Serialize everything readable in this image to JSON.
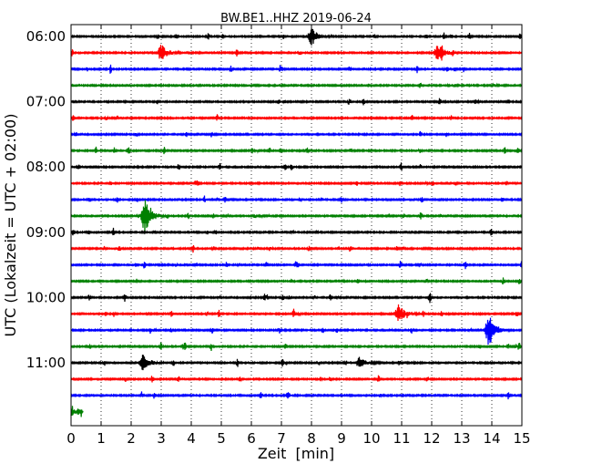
{
  "chart_data": {
    "type": "line",
    "title": "BW.BE1..HHZ 2019-06-24",
    "xlabel": "Zeit  [min]",
    "ylabel": "UTC (Lokalzeit = UTC + 02:00)",
    "xlim": [
      0,
      15
    ],
    "x_ticks": [
      0,
      1,
      2,
      3,
      4,
      5,
      6,
      7,
      8,
      9,
      10,
      11,
      12,
      13,
      14,
      15
    ],
    "y_tick_labels": [
      "06:00",
      "07:00",
      "08:00",
      "09:00",
      "10:00",
      "11:00"
    ],
    "grid": "x",
    "trace_start_times": [
      "06:00",
      "06:15",
      "06:30",
      "06:45",
      "07:00",
      "07:15",
      "07:30",
      "07:45",
      "08:00",
      "08:15",
      "08:30",
      "08:45",
      "09:00",
      "09:15",
      "09:30",
      "09:45",
      "10:00",
      "10:15",
      "10:30",
      "10:45",
      "11:00",
      "11:15",
      "11:30",
      "11:45"
    ],
    "trace_colors": [
      "#000000",
      "#ff0000",
      "#0000ff",
      "#008000"
    ],
    "events": [
      {
        "trace": "06:00",
        "minute": 8.0,
        "amplitude": 1.0
      },
      {
        "trace": "06:15",
        "minute": 3.0,
        "amplitude": 1.0
      },
      {
        "trace": "06:15",
        "minute": 12.2,
        "amplitude": 1.0
      },
      {
        "trace": "08:45",
        "minute": 2.45,
        "amplitude": 2.0
      },
      {
        "trace": "10:15",
        "minute": 10.9,
        "amplitude": 1.0
      },
      {
        "trace": "10:30",
        "minute": 13.9,
        "amplitude": 2.0
      },
      {
        "trace": "11:00",
        "minute": 2.4,
        "amplitude": 1.0
      },
      {
        "trace": "11:00",
        "minute": 9.6,
        "amplitude": 0.6
      }
    ],
    "last_trace_end_minute": 0.4
  }
}
